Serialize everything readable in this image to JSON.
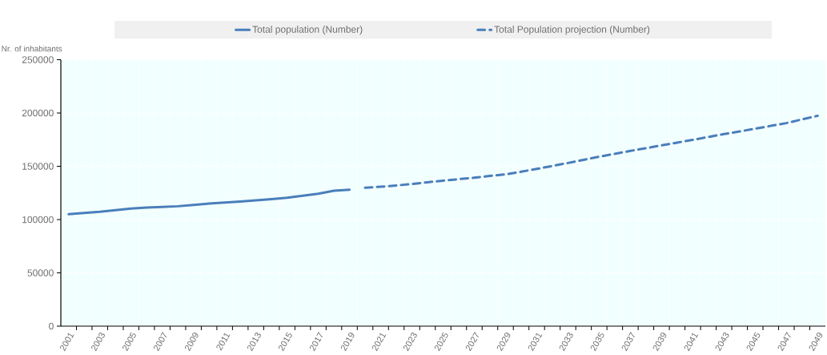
{
  "chart_data": {
    "type": "line",
    "ylabel": "Nr. of inhabitants",
    "categories": [
      "2001",
      null,
      "2003",
      null,
      "2005",
      null,
      "2007",
      null,
      "2009",
      null,
      "2011",
      null,
      "2013",
      null,
      "2015",
      null,
      "2017",
      null,
      "2019",
      null,
      "2021",
      null,
      "2023",
      null,
      "2025",
      null,
      "2027",
      null,
      "2029",
      null,
      "2031",
      null,
      "2033",
      null,
      "2035",
      null,
      "2037",
      null,
      "2039",
      null,
      "2041",
      null,
      "2043",
      null,
      "2045",
      null,
      "2047",
      null,
      "2049"
    ],
    "series": [
      {
        "name": "Total population  (Number)",
        "color": "#4a7ebb",
        "line_style": "solid",
        "values": [
          105000,
          106200,
          107300,
          108800,
          110300,
          111200,
          111800,
          112500,
          113800,
          115000,
          116000,
          117000,
          118000,
          119200,
          120500,
          122300,
          124300,
          127000,
          128000,
          null,
          null,
          null,
          null,
          null,
          null,
          null,
          null,
          null,
          null,
          null,
          null,
          null,
          null,
          null,
          null,
          null,
          null,
          null,
          null,
          null,
          null,
          null,
          null,
          null,
          null,
          null,
          null,
          null,
          null
        ]
      },
      {
        "name": "Total Population projection (Number)",
        "color": "#4a7ebb",
        "line_style": "dashed",
        "values": [
          null,
          null,
          null,
          null,
          null,
          null,
          null,
          null,
          null,
          null,
          null,
          null,
          null,
          null,
          null,
          null,
          null,
          null,
          null,
          129800,
          130800,
          132000,
          133400,
          135000,
          136500,
          137900,
          139300,
          140900,
          142400,
          144900,
          147500,
          150300,
          153100,
          156000,
          159000,
          161700,
          164400,
          167000,
          169700,
          172200,
          174800,
          177500,
          180200,
          182700,
          185300,
          187900,
          190500,
          194000,
          197400
        ]
      }
    ],
    "ylim": [
      0,
      250000
    ],
    "yticks": [
      0,
      50000,
      100000,
      150000,
      200000,
      250000
    ],
    "grid": true,
    "legend": "top"
  }
}
